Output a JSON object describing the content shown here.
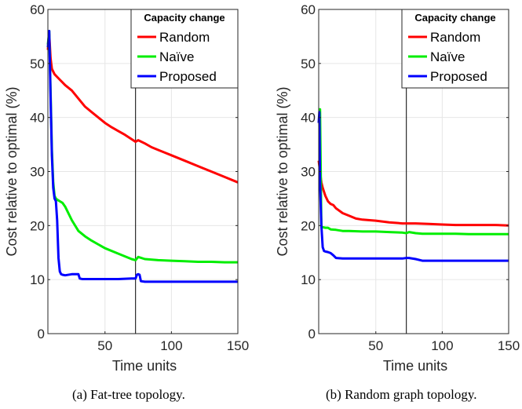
{
  "chart_data": [
    {
      "type": "line",
      "caption": "(a) Fat-tree topology.",
      "xlabel": "Time units",
      "ylabel": "Cost relative to optimal (%)",
      "xlim": [
        7,
        150
      ],
      "ylim": [
        0,
        60
      ],
      "xticks": [
        50,
        100,
        150
      ],
      "yticks": [
        0,
        10,
        20,
        30,
        40,
        50,
        60
      ],
      "grid": true,
      "event_line_x": 73,
      "legend": {
        "title": "Capacity change",
        "placement": "top-right"
      },
      "series": [
        {
          "name": "Random",
          "color": "#ff0000",
          "x": [
            7,
            8,
            9,
            10,
            11,
            12,
            14,
            16,
            18,
            20,
            25,
            30,
            35,
            40,
            45,
            50,
            55,
            60,
            65,
            70,
            73,
            75,
            80,
            85,
            90,
            95,
            100,
            110,
            120,
            130,
            140,
            150
          ],
          "y": [
            52.5,
            55.5,
            51,
            49,
            48.5,
            48,
            47.5,
            47,
            46.5,
            46,
            45,
            43.5,
            42,
            41,
            40,
            39,
            38.2,
            37.5,
            36.8,
            36,
            35.5,
            35.8,
            35.2,
            34.5,
            34,
            33.5,
            33,
            32,
            31,
            30,
            29,
            28
          ]
        },
        {
          "name": "Naïve",
          "color": "#00ee00",
          "x": [
            7,
            8,
            9,
            10,
            11,
            12,
            13,
            14,
            16,
            18,
            20,
            25,
            30,
            35,
            40,
            50,
            60,
            70,
            73,
            75,
            80,
            90,
            100,
            110,
            120,
            130,
            140,
            150
          ],
          "y": [
            53.5,
            56,
            45,
            34,
            28,
            25.5,
            25,
            24.8,
            24.5,
            24.2,
            23.5,
            21,
            19,
            18,
            17.2,
            15.8,
            14.8,
            13.8,
            13.6,
            14.2,
            13.8,
            13.6,
            13.5,
            13.4,
            13.3,
            13.3,
            13.2,
            13.2
          ]
        },
        {
          "name": "Proposed",
          "color": "#0000ff",
          "x": [
            7,
            8,
            9,
            10,
            11,
            12,
            13,
            14,
            15,
            16,
            17,
            18,
            20,
            25,
            30,
            31,
            33,
            40,
            50,
            60,
            70,
            73,
            74,
            75,
            76,
            77,
            80,
            90,
            100,
            110,
            120,
            130,
            140,
            150
          ],
          "y": [
            53,
            56,
            44,
            33,
            27,
            25,
            24.5,
            21,
            14,
            11.5,
            11,
            10.9,
            10.8,
            11,
            11,
            10.2,
            10.1,
            10.1,
            10.1,
            10.1,
            10.2,
            10.2,
            10.9,
            11,
            10.9,
            9.7,
            9.6,
            9.6,
            9.6,
            9.6,
            9.6,
            9.6,
            9.6,
            9.6
          ]
        }
      ]
    },
    {
      "type": "line",
      "caption": "(b) Random graph topology.",
      "xlabel": "Time units",
      "ylabel": "Cost relative to optimal (%)",
      "xlim": [
        7,
        150
      ],
      "ylim": [
        0,
        60
      ],
      "xticks": [
        50,
        100,
        150
      ],
      "yticks": [
        0,
        10,
        20,
        30,
        40,
        50,
        60
      ],
      "grid": true,
      "event_line_x": 73,
      "legend": {
        "title": "Capacity change",
        "placement": "top-right"
      },
      "series": [
        {
          "name": "Random",
          "color": "#ff0000",
          "x": [
            7,
            8,
            9,
            10,
            12,
            14,
            16,
            18,
            20,
            25,
            30,
            35,
            40,
            50,
            60,
            70,
            73,
            80,
            90,
            100,
            110,
            120,
            130,
            140,
            150
          ],
          "y": [
            32,
            30,
            28,
            27,
            25.5,
            24.5,
            24,
            23.8,
            23.2,
            22.3,
            21.8,
            21.3,
            21.1,
            20.9,
            20.6,
            20.4,
            20.4,
            20.4,
            20.3,
            20.2,
            20.1,
            20.1,
            20.1,
            20.1,
            20.0
          ]
        },
        {
          "name": "Naïve",
          "color": "#00ee00",
          "x": [
            7,
            8,
            9,
            10,
            12,
            14,
            16,
            20,
            25,
            30,
            40,
            50,
            60,
            70,
            73,
            75,
            80,
            85,
            90,
            100,
            110,
            120,
            130,
            140,
            150
          ],
          "y": [
            41.5,
            41.5,
            19.8,
            19.7,
            19.6,
            19.6,
            19.3,
            19.2,
            19.0,
            19.0,
            18.9,
            18.9,
            18.8,
            18.7,
            18.6,
            18.8,
            18.6,
            18.5,
            18.5,
            18.5,
            18.5,
            18.4,
            18.4,
            18.4,
            18.4
          ]
        },
        {
          "name": "Proposed",
          "color": "#0000ff",
          "x": [
            7,
            7.5,
            8,
            9,
            10,
            11,
            12,
            14,
            16,
            18,
            20,
            25,
            30,
            40,
            50,
            60,
            70,
            73,
            75,
            80,
            85,
            90,
            100,
            110,
            120,
            130,
            140,
            150
          ],
          "y": [
            39,
            41,
            28,
            20,
            16,
            15.3,
            15.2,
            15.1,
            14.9,
            14.5,
            14.0,
            13.9,
            13.9,
            13.9,
            13.9,
            13.9,
            13.9,
            14.0,
            14.0,
            13.8,
            13.5,
            13.5,
            13.5,
            13.5,
            13.5,
            13.5,
            13.5,
            13.5
          ]
        }
      ]
    }
  ]
}
